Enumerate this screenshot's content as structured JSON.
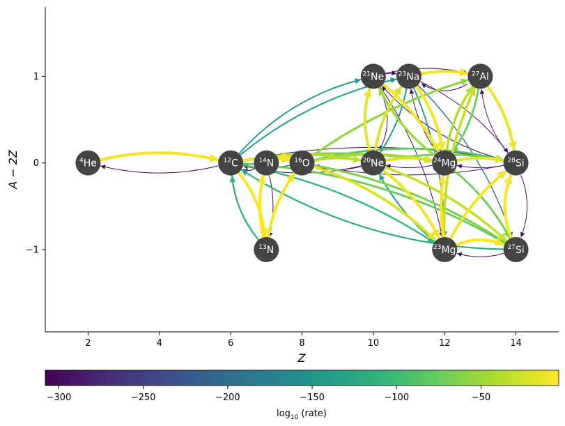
{
  "chart_data": {
    "type": "network",
    "xlabel": "Z",
    "ylabel": "A − 2Z",
    "xlim": [
      0.8,
      15.2
    ],
    "ylim": [
      -1.95,
      1.8
    ],
    "xticks": [
      2,
      4,
      6,
      8,
      10,
      12,
      14
    ],
    "yticks": [
      -1,
      0,
      1
    ],
    "ytick_labels": [
      "−1",
      "0",
      "1"
    ],
    "colorbar": {
      "label": "log",
      "label_sub": "10",
      "label_rest": " (rate)",
      "range": [
        -308,
        -4
      ],
      "ticks": [
        -300,
        -250,
        -200,
        -150,
        -100,
        -50
      ],
      "tick_labels": [
        "−300",
        "−250",
        "−200",
        "−150",
        "−100",
        "−50"
      ]
    },
    "nodes": [
      {
        "id": "he4",
        "mass": "4",
        "symbol": "He",
        "z": 2,
        "n_minus_z": 0
      },
      {
        "id": "c12",
        "mass": "12",
        "symbol": "C",
        "z": 6,
        "n_minus_z": 0
      },
      {
        "id": "n13",
        "mass": "13",
        "symbol": "N",
        "z": 7,
        "n_minus_z": -1
      },
      {
        "id": "n14",
        "mass": "14",
        "symbol": "N",
        "z": 7,
        "n_minus_z": 0
      },
      {
        "id": "o16",
        "mass": "16",
        "symbol": "O",
        "z": 8,
        "n_minus_z": 0
      },
      {
        "id": "ne20",
        "mass": "20",
        "symbol": "Ne",
        "z": 10,
        "n_minus_z": 0
      },
      {
        "id": "ne21",
        "mass": "21",
        "symbol": "Ne",
        "z": 10,
        "n_minus_z": 1
      },
      {
        "id": "na23",
        "mass": "23",
        "symbol": "Na",
        "z": 11,
        "n_minus_z": 1
      },
      {
        "id": "mg23",
        "mass": "23",
        "symbol": "Mg",
        "z": 12,
        "n_minus_z": -1
      },
      {
        "id": "mg24",
        "mass": "24",
        "symbol": "Mg",
        "z": 12,
        "n_minus_z": 0
      },
      {
        "id": "al27",
        "mass": "27",
        "symbol": "Al",
        "z": 13,
        "n_minus_z": 1
      },
      {
        "id": "si27",
        "mass": "27",
        "symbol": "Si",
        "z": 14,
        "n_minus_z": -1
      },
      {
        "id": "si28",
        "mass": "28",
        "symbol": "Si",
        "z": 14,
        "n_minus_z": 0
      }
    ],
    "edges": [
      {
        "from": "he4",
        "to": "c12",
        "log_rate": -8,
        "curve": 0.12
      },
      {
        "from": "c12",
        "to": "he4",
        "log_rate": -305,
        "curve": 0.12
      },
      {
        "from": "c12",
        "to": "n13",
        "log_rate": -6,
        "curve": 0.15
      },
      {
        "from": "n13",
        "to": "c12",
        "log_rate": -120,
        "curve": 0.15
      },
      {
        "from": "c12",
        "to": "o16",
        "log_rate": -12,
        "curve": 0.1
      },
      {
        "from": "o16",
        "to": "c12",
        "log_rate": -300,
        "curve": 0.1
      },
      {
        "from": "c12",
        "to": "ne20",
        "log_rate": -40,
        "curve": 0.1
      },
      {
        "from": "ne20",
        "to": "c12",
        "log_rate": -295,
        "curve": 0.12
      },
      {
        "from": "c12",
        "to": "ne21",
        "log_rate": -150,
        "curve": 0.15
      },
      {
        "from": "c12",
        "to": "na23",
        "log_rate": -140,
        "curve": 0.12
      },
      {
        "from": "c12",
        "to": "mg23",
        "log_rate": -110,
        "curve": 0.1
      },
      {
        "from": "c12",
        "to": "mg24",
        "log_rate": -60,
        "curve": 0.08
      },
      {
        "from": "c12",
        "to": "si27",
        "log_rate": -75,
        "curve": 0.12
      },
      {
        "from": "si27",
        "to": "c12",
        "log_rate": -125,
        "curve": 0.14
      },
      {
        "from": "c12",
        "to": "si28",
        "log_rate": -300,
        "curve": 0.1
      },
      {
        "from": "n13",
        "to": "n14",
        "log_rate": -5,
        "curve": 0.12
      },
      {
        "from": "n14",
        "to": "n13",
        "log_rate": -310,
        "curve": 0.12
      },
      {
        "from": "n13",
        "to": "o16",
        "log_rate": -10,
        "curve": 0.12
      },
      {
        "from": "n14",
        "to": "c12",
        "log_rate": -290,
        "curve": 0.25
      },
      {
        "from": "n14",
        "to": "o16",
        "log_rate": -10,
        "curve": 0.2
      },
      {
        "from": "o16",
        "to": "ne20",
        "log_rate": -35,
        "curve": 0.1
      },
      {
        "from": "ne20",
        "to": "o16",
        "log_rate": -300,
        "curve": 0.14
      },
      {
        "from": "o16",
        "to": "mg24",
        "log_rate": -45,
        "curve": 0.1
      },
      {
        "from": "o16",
        "to": "si28",
        "log_rate": -85,
        "curve": 0.12
      },
      {
        "from": "si28",
        "to": "o16",
        "log_rate": -290,
        "curve": 0.1
      },
      {
        "from": "o16",
        "to": "al27",
        "log_rate": -55,
        "curve": 0.08
      },
      {
        "from": "o16",
        "to": "mg23",
        "log_rate": -20,
        "curve": 0.12
      },
      {
        "from": "o16",
        "to": "si27",
        "log_rate": -65,
        "curve": 0.1
      },
      {
        "from": "ne20",
        "to": "mg24",
        "log_rate": -18,
        "curve": 0.1
      },
      {
        "from": "mg24",
        "to": "ne20",
        "log_rate": -300,
        "curve": 0.1
      },
      {
        "from": "ne20",
        "to": "na23",
        "log_rate": -20,
        "curve": 0.12
      },
      {
        "from": "ne20",
        "to": "ne21",
        "log_rate": -15,
        "curve": 0.15
      },
      {
        "from": "ne21",
        "to": "ne20",
        "log_rate": -300,
        "curve": 0.25
      },
      {
        "from": "ne20",
        "to": "si28",
        "log_rate": -70,
        "curve": 0.1
      },
      {
        "from": "ne20",
        "to": "mg23",
        "log_rate": -12,
        "curve": 0.12
      },
      {
        "from": "ne20",
        "to": "si27",
        "log_rate": -30,
        "curve": 0.1
      },
      {
        "from": "ne21",
        "to": "na23",
        "log_rate": -300,
        "curve": 0.1
      },
      {
        "from": "ne21",
        "to": "mg24",
        "log_rate": -10,
        "curve": 0.1
      },
      {
        "from": "ne21",
        "to": "al27",
        "log_rate": -300,
        "curve": 0.12
      },
      {
        "from": "na23",
        "to": "mg24",
        "log_rate": -8,
        "curve": 0.12
      },
      {
        "from": "mg24",
        "to": "na23",
        "log_rate": -300,
        "curve": 0.12
      },
      {
        "from": "na23",
        "to": "al27",
        "log_rate": -10,
        "curve": 0.1
      },
      {
        "from": "al27",
        "to": "na23",
        "log_rate": -305,
        "curve": 0.3
      },
      {
        "from": "na23",
        "to": "ne20",
        "log_rate": -140,
        "curve": 0.1
      },
      {
        "from": "na23",
        "to": "mg23",
        "log_rate": -160,
        "curve": 0.1
      },
      {
        "from": "na23",
        "to": "si28",
        "log_rate": -300,
        "curve": 0.12
      },
      {
        "from": "mg24",
        "to": "al27",
        "log_rate": -40,
        "curve": 0.12
      },
      {
        "from": "mg24",
        "to": "si28",
        "log_rate": -15,
        "curve": 0.1
      },
      {
        "from": "mg24",
        "to": "ne21",
        "log_rate": -50,
        "curve": 0.12
      },
      {
        "from": "mg23",
        "to": "mg24",
        "log_rate": -8,
        "curve": 0.06
      },
      {
        "from": "mg23",
        "to": "si27",
        "log_rate": -6,
        "curve": 0.2
      },
      {
        "from": "si27",
        "to": "mg23",
        "log_rate": -300,
        "curve": 0.15
      },
      {
        "from": "mg23",
        "to": "ne20",
        "log_rate": -125,
        "curve": 0.1
      },
      {
        "from": "mg23",
        "to": "si28",
        "log_rate": -10,
        "curve": 0.1
      },
      {
        "from": "mg23",
        "to": "al27",
        "log_rate": -30,
        "curve": 0.12
      },
      {
        "from": "al27",
        "to": "si28",
        "log_rate": -12,
        "curve": 0.12
      },
      {
        "from": "si28",
        "to": "al27",
        "log_rate": -300,
        "curve": 0.15
      },
      {
        "from": "al27",
        "to": "mg24",
        "log_rate": -75,
        "curve": 0.12
      },
      {
        "from": "si27",
        "to": "si28",
        "log_rate": -6,
        "curve": 0.2
      },
      {
        "from": "si28",
        "to": "si27",
        "log_rate": -300,
        "curve": 0.2
      },
      {
        "from": "mg24",
        "to": "si27",
        "log_rate": -70,
        "curve": 0.1
      },
      {
        "from": "si28",
        "to": "ne21",
        "log_rate": -300,
        "curve": 0.15
      },
      {
        "from": "ne21",
        "to": "mg23",
        "log_rate": -300,
        "curve": 0.1
      },
      {
        "from": "na23",
        "to": "si27",
        "log_rate": -200,
        "curve": 0.12
      },
      {
        "from": "si28",
        "to": "mg24",
        "log_rate": -300,
        "curve": 0.1
      }
    ]
  }
}
